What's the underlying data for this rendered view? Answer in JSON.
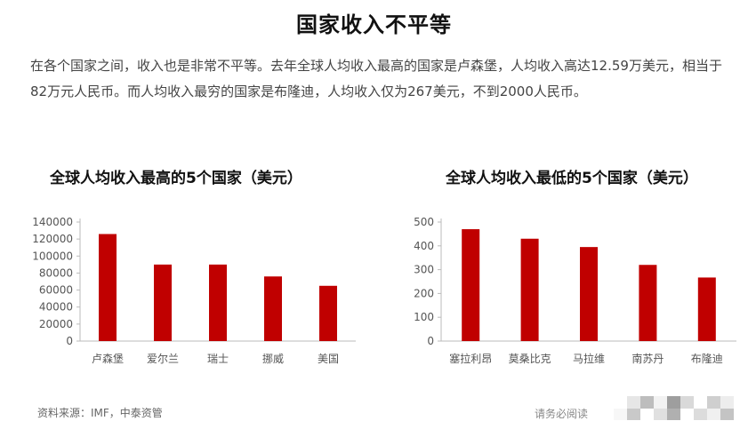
{
  "page": {
    "title": "国家收入不平等",
    "intro": "在各个国家之间，收入也是非常不平等。去年全球人均收入最高的国家是卢森堡，人均收入高达12.59万美元，相当于82万元人民币。而人均收入最穷的国家是布隆迪，人均收入仅为267美元，不到2000人民币。",
    "source": "资料来源：IMF，中泰资管",
    "footer_note": "请务必阅读"
  },
  "colors": {
    "bar": "#c00000",
    "axis": "#bbbbbb"
  },
  "chart_data": [
    {
      "type": "bar",
      "title": "全球人均收入最高的5个国家（美元）",
      "xlabel": "",
      "ylabel": "",
      "categories": [
        "卢森堡",
        "爱尔兰",
        "瑞士",
        "挪威",
        "美国"
      ],
      "values": [
        125900,
        90000,
        90000,
        76000,
        65000
      ],
      "ylim": [
        0,
        140000
      ],
      "yticks": [
        0,
        20000,
        40000,
        60000,
        80000,
        100000,
        120000,
        140000
      ],
      "grid": false,
      "legend": "none"
    },
    {
      "type": "bar",
      "title": "全球人均收入最低的5个国家（美元）",
      "xlabel": "",
      "ylabel": "",
      "categories": [
        "塞拉利昂",
        "莫桑比克",
        "马拉维",
        "南苏丹",
        "布隆迪"
      ],
      "values": [
        470,
        430,
        395,
        320,
        267
      ],
      "ylim": [
        0,
        500
      ],
      "yticks": [
        0,
        100,
        200,
        300,
        400,
        500
      ],
      "grid": false,
      "legend": "none"
    }
  ]
}
